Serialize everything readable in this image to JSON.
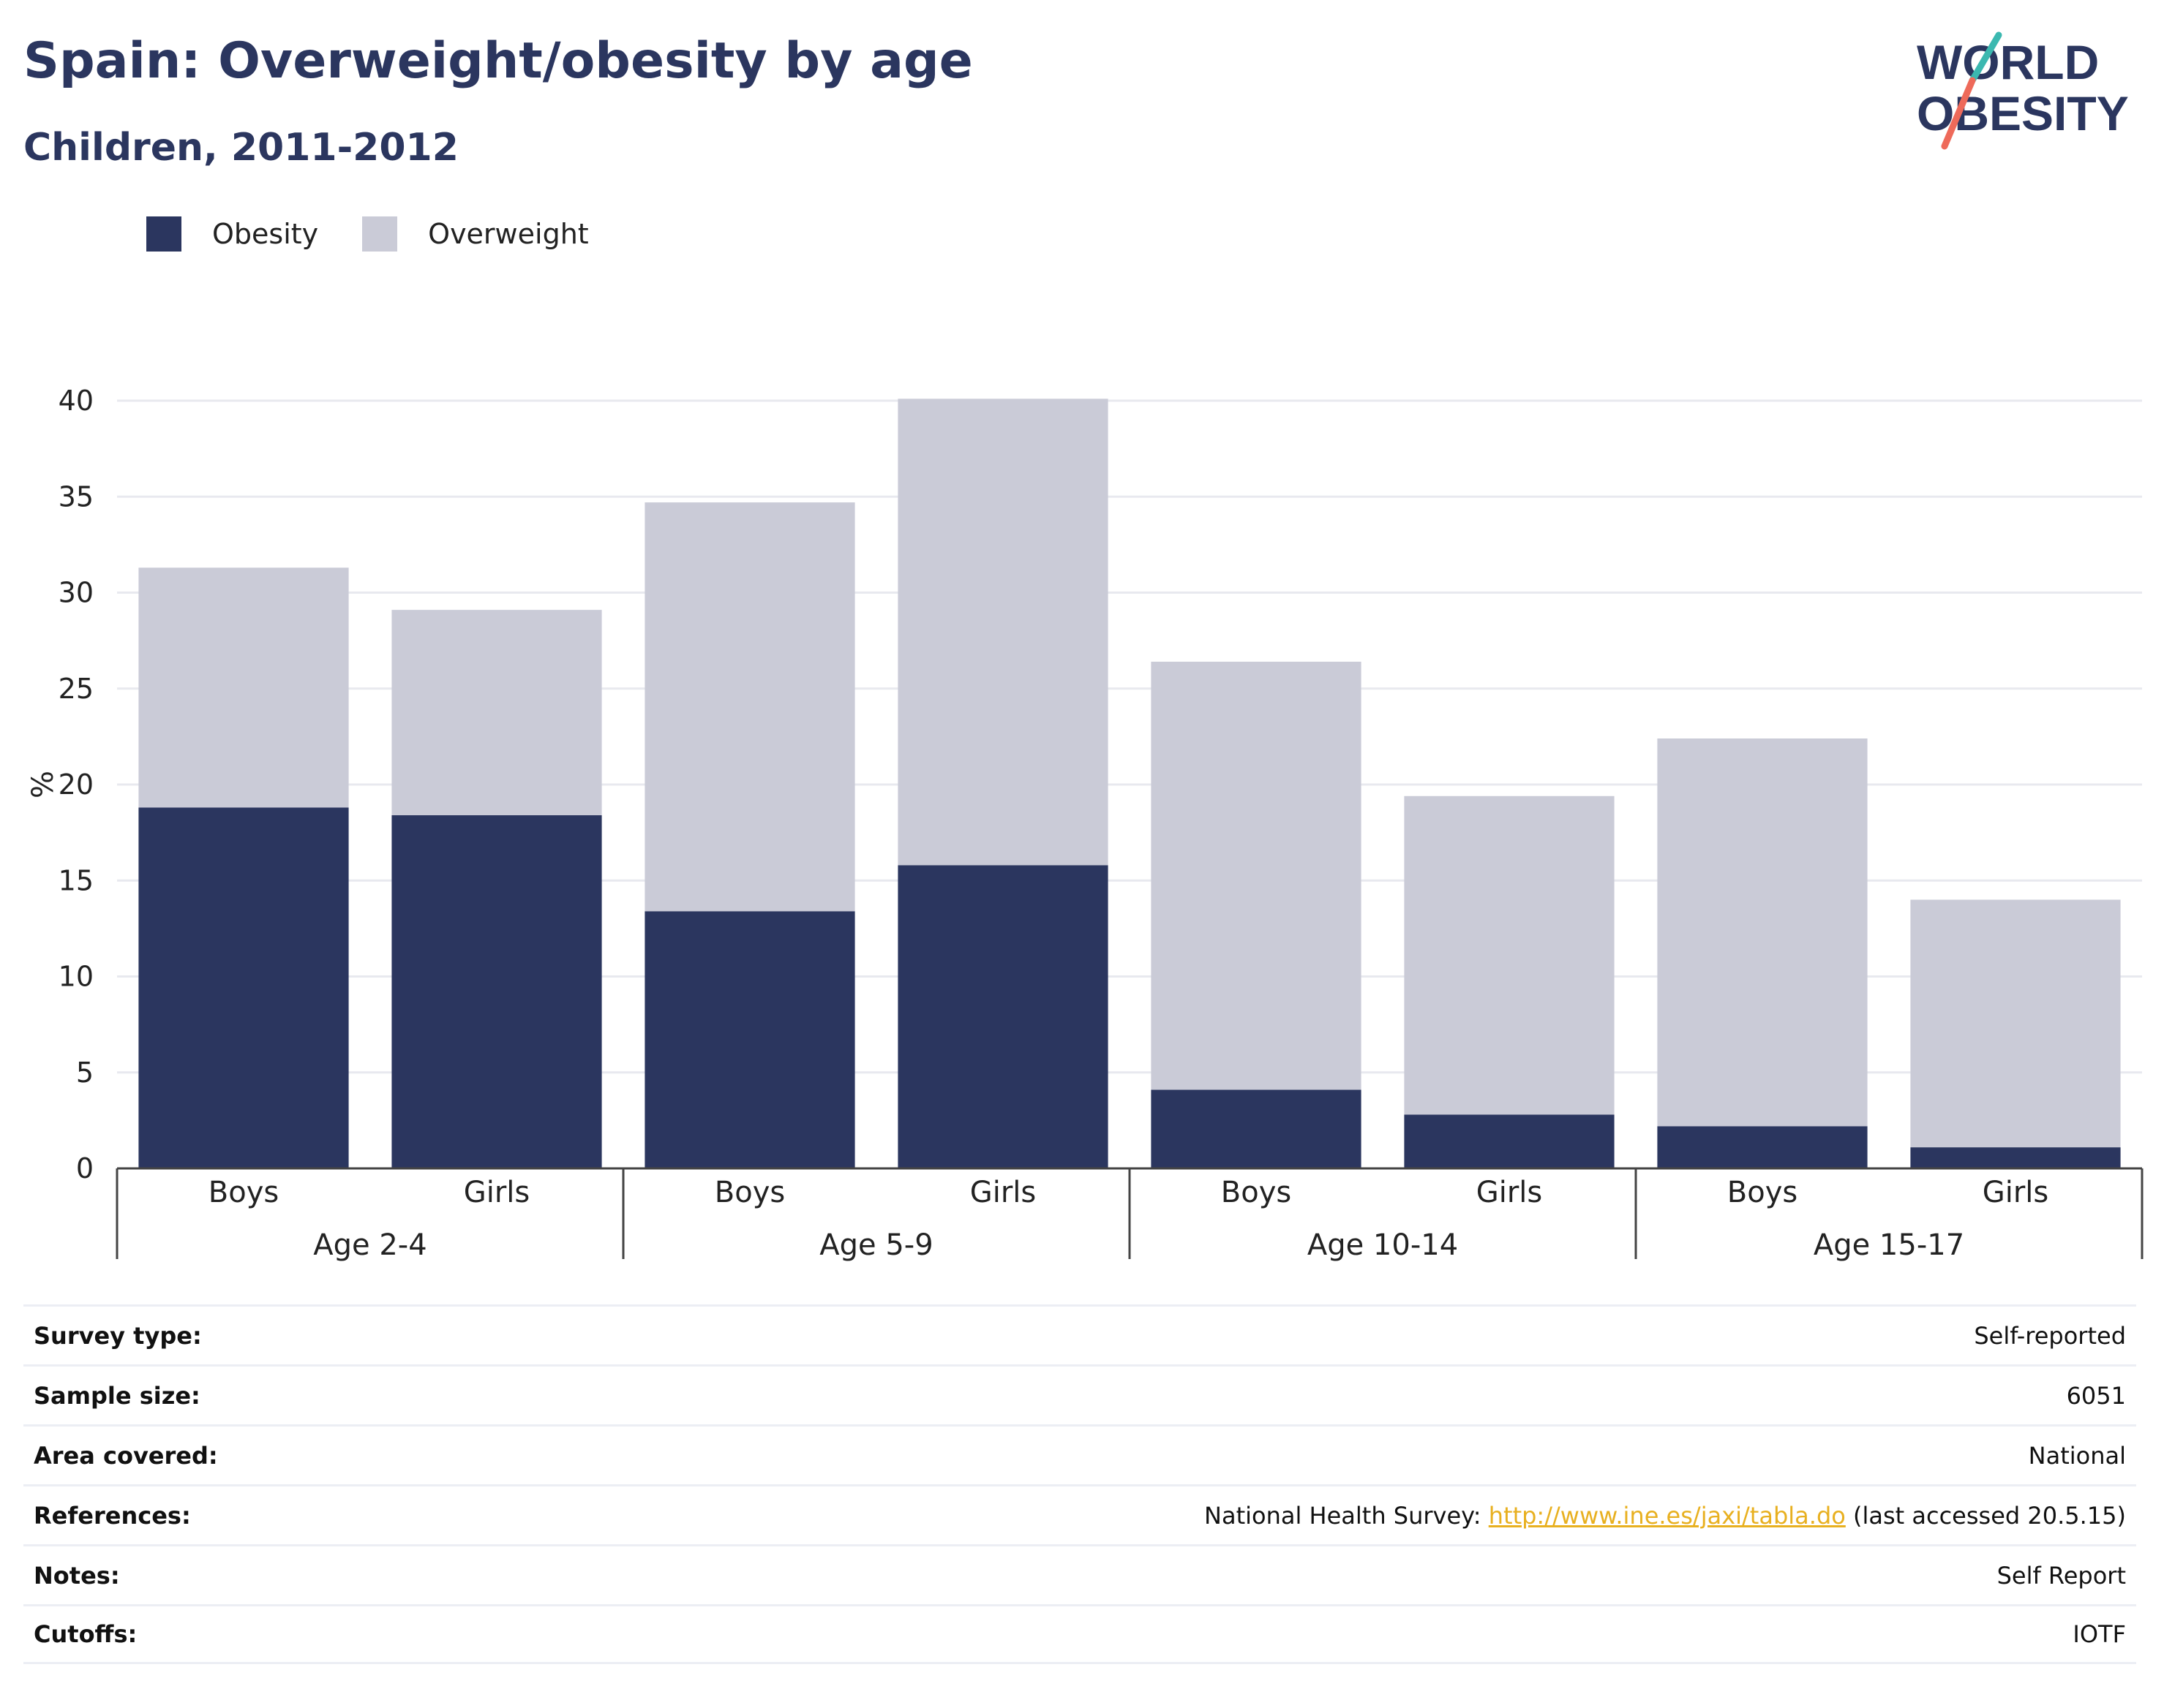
{
  "header": {
    "title": "Spain: Overweight/obesity by age",
    "subtitle": "Children, 2011-2012"
  },
  "logo": {
    "line1": "WORLD",
    "line2": "OBESITY"
  },
  "legend": {
    "items": [
      {
        "label": "Obesity",
        "color": "#2b365f"
      },
      {
        "label": "Overweight",
        "color": "#cacbd7"
      }
    ]
  },
  "chart_data": {
    "type": "bar",
    "stacked": true,
    "ylabel": "%",
    "ylim": [
      0,
      40
    ],
    "yticks": [
      0,
      5,
      10,
      15,
      20,
      25,
      30,
      35,
      40
    ],
    "grid": true,
    "legend_position": "top-left",
    "groups": [
      {
        "label": "Age 2-4",
        "categories": [
          "Boys",
          "Girls"
        ]
      },
      {
        "label": "Age 5-9",
        "categories": [
          "Boys",
          "Girls"
        ]
      },
      {
        "label": "Age 10-14",
        "categories": [
          "Boys",
          "Girls"
        ]
      },
      {
        "label": "Age 15-17",
        "categories": [
          "Boys",
          "Girls"
        ]
      }
    ],
    "series": [
      {
        "name": "Obesity",
        "color": "#2b365f",
        "values": [
          18.8,
          18.4,
          13.4,
          15.8,
          4.1,
          2.8,
          2.2,
          1.1
        ]
      },
      {
        "name": "Overweight",
        "color": "#cacbd7",
        "values": [
          12.5,
          10.7,
          21.3,
          24.3,
          22.3,
          16.6,
          20.2,
          12.9
        ]
      }
    ]
  },
  "info": {
    "rows": [
      {
        "label": "Survey type:",
        "value": "Self-reported"
      },
      {
        "label": "Sample size:",
        "value": "6051"
      },
      {
        "label": "Area covered:",
        "value": "National"
      },
      {
        "label": "References:",
        "value_prefix": "National Health Survey: ",
        "link": "http://www.ine.es/jaxi/tabla.do",
        "value_suffix": " (last accessed 20.5.15)"
      },
      {
        "label": "Notes:",
        "value": "Self Report"
      },
      {
        "label": "Cutoffs:",
        "value": "IOTF"
      }
    ]
  }
}
